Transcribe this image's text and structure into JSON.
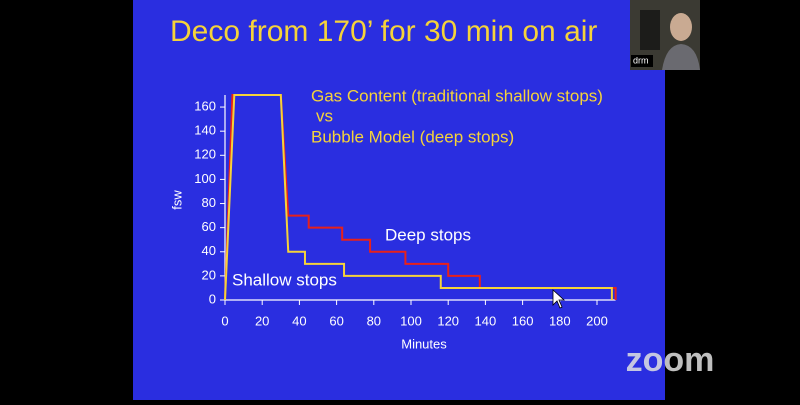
{
  "ui": {
    "participant": "drm",
    "logo": "zoom"
  },
  "chart_data": {
    "type": "line",
    "title": "Deco from 170’ for 30 min on air",
    "subtitle_lines": [
      "Gas Content (traditional shallow stops)",
      "vs",
      "Bubble Model (deep stops)"
    ],
    "x_label": "Minutes",
    "y_label": "fsw",
    "xlim": [
      0,
      210
    ],
    "ylim": [
      0,
      170
    ],
    "xticks": [
      0,
      20,
      40,
      60,
      80,
      100,
      120,
      140,
      160,
      180,
      200
    ],
    "yticks": [
      0,
      20,
      40,
      60,
      80,
      100,
      120,
      140,
      160
    ],
    "series": [
      {
        "name": "Deep stops",
        "color": "#e8211a",
        "x": [
          0,
          4,
          30,
          34,
          45,
          45,
          63,
          63,
          78,
          78,
          97,
          97,
          120,
          120,
          137,
          137,
          210,
          210
        ],
        "values": [
          0,
          170,
          170,
          70,
          70,
          60,
          60,
          50,
          50,
          40,
          40,
          30,
          30,
          20,
          20,
          10,
          10,
          0
        ]
      },
      {
        "name": "Shallow stops",
        "color": "#f5d33a",
        "x": [
          0,
          5,
          30,
          34,
          43,
          43,
          64,
          64,
          116,
          116,
          208,
          208
        ],
        "values": [
          0,
          170,
          170,
          40,
          40,
          30,
          30,
          20,
          20,
          10,
          10,
          0
        ]
      }
    ]
  }
}
